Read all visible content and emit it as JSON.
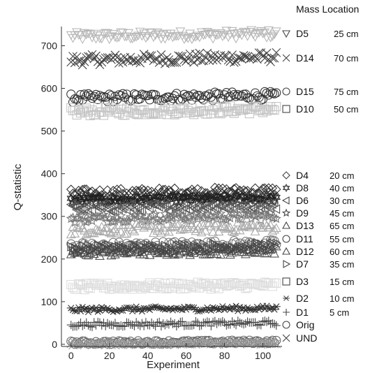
{
  "chart_data": {
    "type": "scatter",
    "title": "",
    "xlabel": "Experiment",
    "ylabel": "Q-statistic",
    "xlim": [
      -5,
      110
    ],
    "ylim": [
      -5,
      745
    ],
    "xticks": [
      0,
      20,
      40,
      60,
      80,
      100
    ],
    "yticks": [
      0,
      100,
      200,
      300,
      400,
      500,
      600,
      700
    ],
    "n_points": 108,
    "legend_header": "Mass Location",
    "series": [
      {
        "name": "D5",
        "location": "25  cm",
        "mean": 725,
        "spread": 10,
        "marker": "triangle-down",
        "color": "#b8b8b8"
      },
      {
        "name": "D14",
        "location": "70 cm",
        "mean": 670,
        "spread": 12,
        "marker": "x",
        "color": "#444444"
      },
      {
        "name": "D15",
        "location": "75 cm",
        "mean": 580,
        "spread": 10,
        "marker": "circle",
        "color": "#333333"
      },
      {
        "name": "D10",
        "location": "50 cm",
        "mean": 548,
        "spread": 10,
        "marker": "square",
        "color": "#c4c4c4"
      },
      {
        "name": "D4",
        "location": "20 cm",
        "mean": 357,
        "spread": 10,
        "marker": "diamond",
        "color": "#333333"
      },
      {
        "name": "D8",
        "location": "40 cm",
        "mean": 340,
        "spread": 8,
        "marker": "hexagram",
        "color": "#222222"
      },
      {
        "name": "D6",
        "location": "30 cm",
        "mean": 322,
        "spread": 10,
        "marker": "triangle-left",
        "color": "#555555"
      },
      {
        "name": "D9",
        "location": "45 cm",
        "mean": 298,
        "spread": 10,
        "marker": "star",
        "color": "#777777"
      },
      {
        "name": "D13",
        "location": "65 cm",
        "mean": 272,
        "spread": 12,
        "marker": "triangle-up",
        "color": "#aaaaaa"
      },
      {
        "name": "D11",
        "location": "55 cm",
        "mean": 232,
        "spread": 10,
        "marker": "circle",
        "color": "#777777"
      },
      {
        "name": "D12",
        "location": "60 cm",
        "mean": 218,
        "spread": 10,
        "marker": "triangle-up",
        "color": "#555555"
      },
      {
        "name": "D7",
        "location": "35 cm",
        "mean": 226,
        "spread": 10,
        "marker": "triangle-right",
        "color": "#444444"
      },
      {
        "name": "D3",
        "location": "15 cm",
        "mean": 137,
        "spread": 8,
        "marker": "square",
        "color": "#dddddd"
      },
      {
        "name": "D2",
        "location": "10 cm",
        "mean": 83,
        "spread": 6,
        "marker": "asterisk",
        "color": "#333333"
      },
      {
        "name": "D1",
        "location": "5  cm",
        "mean": 48,
        "spread": 6,
        "marker": "plus",
        "color": "#444444"
      },
      {
        "name": "Orig",
        "location": "",
        "mean": 5,
        "spread": 4,
        "marker": "circle",
        "color": "#666666"
      },
      {
        "name": "UND",
        "location": "",
        "mean": 2,
        "spread": 3,
        "marker": "x",
        "color": "#999999"
      }
    ],
    "grid": false,
    "legend_placement": "right"
  }
}
